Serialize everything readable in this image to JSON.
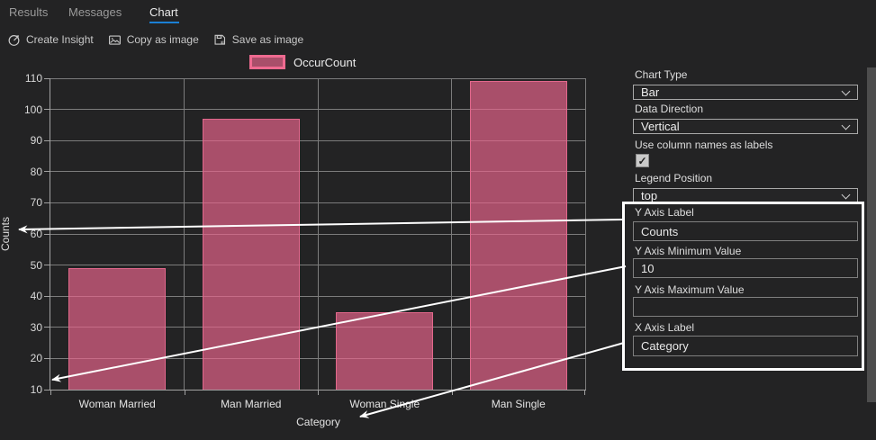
{
  "tabs": [
    {
      "label": "Results",
      "active": false
    },
    {
      "label": "Messages",
      "active": false
    },
    {
      "label": "Chart",
      "active": true
    }
  ],
  "toolbar": {
    "create_insight": "Create Insight",
    "copy_as_image": "Copy as image",
    "save_as_image": "Save as image"
  },
  "chart_data": {
    "type": "bar",
    "categories": [
      "Woman Married",
      "Man Married",
      "Woman Single",
      "Man Single"
    ],
    "series": [
      {
        "name": "OccurCount",
        "values": [
          49,
          97,
          35,
          109
        ]
      }
    ],
    "xlabel": "Category",
    "ylabel": "Counts",
    "ylim": [
      10,
      110
    ],
    "ytick_step": 10,
    "grid": true,
    "legend_position": "top",
    "colors": {
      "bar_fill": "rgba(233,100,140,0.68)",
      "bar_border": "#e2688c",
      "legend_border": "#ef6a90",
      "grid": "#7c7c7c",
      "axis": "#a2a2a2"
    }
  },
  "panel": {
    "chart_type": {
      "label": "Chart Type",
      "value": "Bar"
    },
    "data_direction": {
      "label": "Data Direction",
      "value": "Vertical"
    },
    "use_column_names": {
      "label": "Use column names as labels",
      "checked": true,
      "check_glyph": "✓"
    },
    "legend_position": {
      "label": "Legend Position",
      "value": "top"
    },
    "y_axis_label": {
      "label": "Y Axis Label",
      "value": "Counts"
    },
    "y_axis_min": {
      "label": "Y Axis Minimum Value",
      "value": "10"
    },
    "y_axis_max": {
      "label": "Y Axis Maximum Value",
      "value": ""
    },
    "x_axis_label": {
      "label": "X Axis Label",
      "value": "Category"
    }
  },
  "colors": {
    "accent_tab_underline": "#1b7fd4",
    "background": "#232324",
    "arrow": "#ffffff",
    "highlight_border": "#ffffff"
  }
}
